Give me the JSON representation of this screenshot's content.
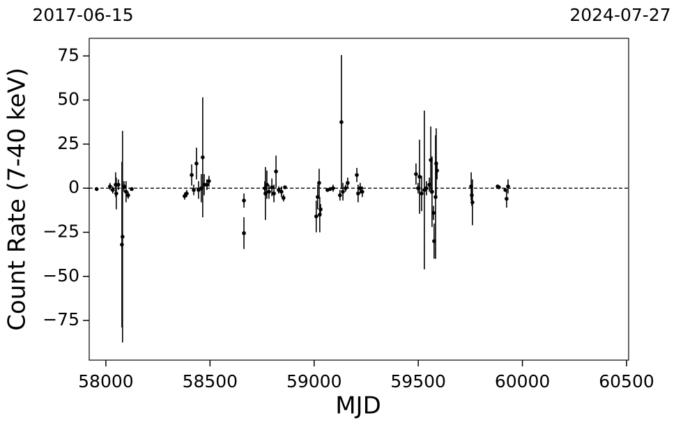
{
  "chart_data": {
    "type": "scatter",
    "annotations": [
      "2017-06-15",
      "2024-07-27"
    ],
    "x_label": "MJD",
    "y_label": "Count Rate (7-40 keV)",
    "xlim": [
      57920,
      60510
    ],
    "ylim": [
      -97.5,
      85
    ],
    "xticks": [
      58000,
      58500,
      59000,
      59500,
      60000,
      60500
    ],
    "yticks": [
      {
        "value": -75,
        "label": "−75"
      },
      {
        "value": -50,
        "label": "−50"
      },
      {
        "value": -25,
        "label": "−25"
      },
      0,
      25,
      50,
      75
    ],
    "hline": 0,
    "color": "#000000",
    "x": [
      57956,
      58020,
      58033,
      58047,
      58050,
      58060,
      58077,
      58080,
      58087,
      58097,
      58107,
      58124,
      58378,
      58388,
      58412,
      58422,
      58435,
      58445,
      58458,
      58465,
      58472,
      58485,
      58495,
      58663,
      58663,
      58763,
      58766,
      58773,
      58783,
      58797,
      58807,
      58817,
      58830,
      58843,
      58853,
      58860,
      59010,
      59017,
      59024,
      59027,
      59031,
      59064,
      59077,
      59091,
      59124,
      59131,
      59138,
      59151,
      59161,
      59205,
      59211,
      59221,
      59231,
      59489,
      59499,
      59506,
      59516,
      59529,
      59539,
      59553,
      59560,
      59566,
      59573,
      59576,
      59583,
      59586,
      59590,
      59754,
      59757,
      59760,
      59881,
      59887,
      59918,
      59924,
      59931
    ],
    "values": [
      -0.5,
      1,
      -1,
      2,
      -3,
      2,
      -32,
      -27.5,
      1,
      -2,
      -4,
      -0.5,
      -4.5,
      -3,
      7.5,
      -1,
      14,
      -1,
      0,
      17.5,
      2,
      2,
      4,
      -7,
      -25.5,
      0,
      -3,
      2,
      -2,
      0.5,
      -3,
      9.5,
      -1,
      -2,
      -5.5,
      0.5,
      -16,
      -5,
      3,
      -15,
      -12,
      -1,
      -0.5,
      0,
      -4,
      37.5,
      -2,
      0,
      3,
      7.5,
      -3,
      0,
      -2,
      8,
      0,
      6.5,
      -3,
      -1,
      0,
      2,
      16,
      -2,
      -14,
      -30,
      -5,
      14,
      10,
      1,
      -4,
      -8,
      1,
      0.5,
      -1,
      -6,
      1
    ],
    "errors": [
      1,
      2,
      2,
      7,
      9,
      3,
      47,
      60,
      3,
      6,
      2,
      1,
      2,
      2,
      6,
      3,
      9,
      5,
      8,
      34,
      6,
      3,
      3,
      4,
      9,
      4,
      15,
      8,
      4,
      5,
      5,
      9,
      2,
      3,
      2,
      1,
      9,
      7,
      8,
      10,
      3,
      1,
      1,
      2,
      3,
      38,
      5,
      2,
      3,
      4,
      5,
      3,
      3,
      6,
      3,
      21,
      10,
      45,
      4,
      4,
      19,
      20,
      4,
      10,
      35,
      20,
      5,
      8,
      6,
      13,
      1,
      1,
      1,
      5,
      4
    ]
  }
}
